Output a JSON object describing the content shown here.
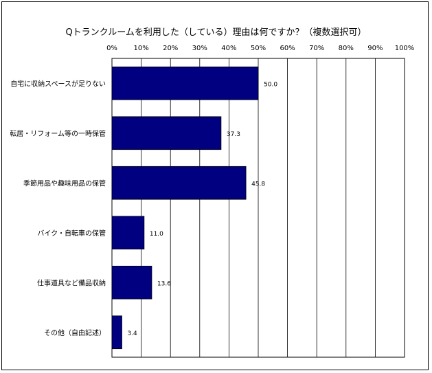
{
  "chart_data": {
    "type": "bar",
    "orientation": "horizontal",
    "title": "Qトランクルームを利用した（している）理由は何ですか？（複数選択可）",
    "categories": [
      "自宅に収納スペースが足りない",
      "転居・リフォーム等の一時保管",
      "季節用品や趣味用品の保管",
      "バイク・自転車の保管",
      "仕事道具など備品収納",
      "その他（自由記述）"
    ],
    "values": [
      50.0,
      37.3,
      45.8,
      11.0,
      13.6,
      3.4
    ],
    "data_labels": [
      "50.0",
      "37.3",
      "45.8",
      "11.0",
      "13.6",
      "3.4"
    ],
    "xlim": [
      0,
      100
    ],
    "ticks": [
      "0%",
      "10%",
      "20%",
      "30%",
      "40%",
      "50%",
      "60%",
      "70%",
      "80%",
      "90%",
      "100%"
    ],
    "tick_values": [
      0,
      10,
      20,
      30,
      40,
      50,
      60,
      70,
      80,
      90,
      100
    ],
    "axis_position": "top",
    "grid": true,
    "bar_color": "#000080",
    "grid_color": "#000000"
  }
}
